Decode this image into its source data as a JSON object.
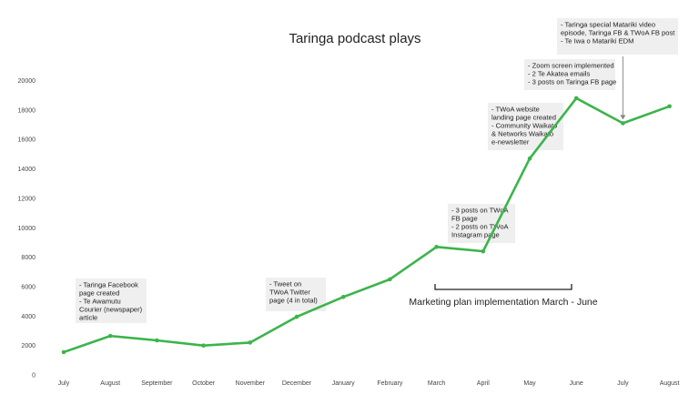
{
  "chart_data": {
    "type": "line",
    "title": "Taringa podcast plays",
    "xlabel": "",
    "ylabel": "",
    "categories": [
      "July",
      "August",
      "September",
      "October",
      "November",
      "December",
      "January",
      "February",
      "March",
      "April",
      "May",
      "June",
      "July",
      "August"
    ],
    "series": [
      {
        "values": [
          1550,
          2650,
          2350,
          2000,
          2200,
          3950,
          5300,
          6500,
          8700,
          8400,
          14700,
          18800,
          17100,
          18250
        ],
        "color": "#3cb44b"
      }
    ],
    "ylim": [
      0,
      20000
    ],
    "yticks": [
      0,
      2000,
      4000,
      6000,
      8000,
      10000,
      12000,
      14000,
      16000,
      18000,
      20000
    ],
    "grid": false,
    "legend": "none",
    "annotations": [
      {
        "lines": [
          "- Taringa Facebook",
          "page created",
          "- Te Awamutu",
          "Courier (newspaper)",
          "article"
        ]
      },
      {
        "lines": [
          "- Tweet on",
          "TWoA Twitter",
          "page (4 in total)"
        ]
      },
      {
        "lines": [
          "- 3 posts on TWoA",
          "FB page",
          "- 2 posts on TWoA",
          "Instagram page"
        ]
      },
      {
        "lines": [
          "- TWoA website",
          "landing page created",
          "- Community Waikato",
          "& Networks Waikato",
          "e-newsletter"
        ]
      },
      {
        "lines": [
          "- Zoom screen implemented",
          "- 2 Te Akatea emails",
          "- 3 posts on Taringa FB page"
        ]
      },
      {
        "lines": [
          "- Taringa special Matariki video",
          "episode, Taringa FB & TWoA FB post",
          "- Te Iwa o Matariki EDM"
        ]
      }
    ],
    "phase_label": "Marketing plan implementation March - June"
  }
}
